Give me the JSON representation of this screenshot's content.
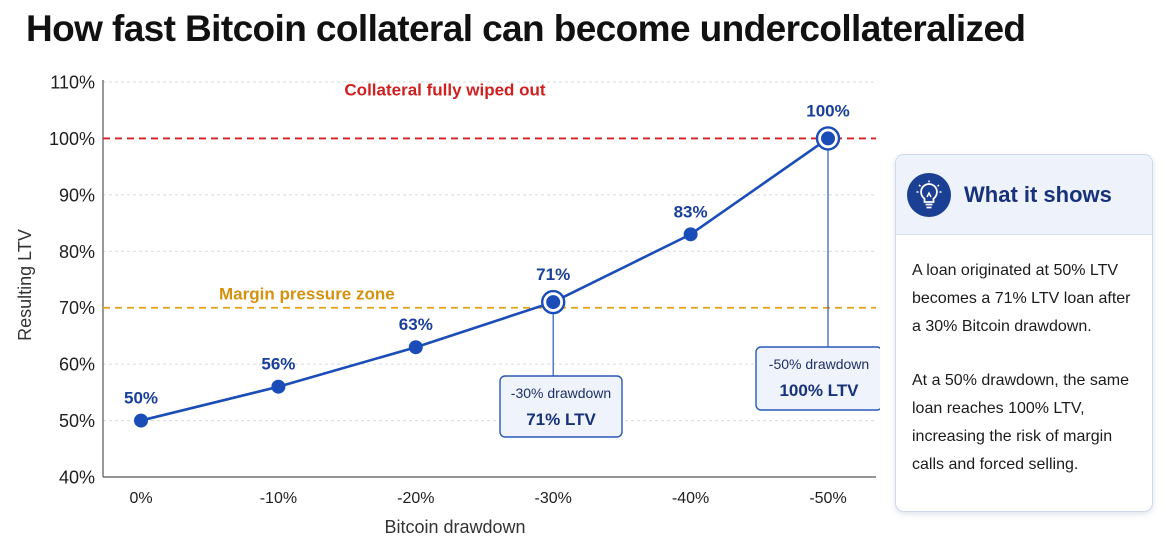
{
  "chart_data": {
    "type": "line",
    "title": "How fast Bitcoin collateral can become undercollateralized",
    "xlabel": "Bitcoin drawdown",
    "ylabel": "Resulting LTV",
    "categories": [
      "0%",
      "-10%",
      "-20%",
      "-30%",
      "-40%",
      "-50%"
    ],
    "y_ticks": [
      "40%",
      "50%",
      "60%",
      "70%",
      "80%",
      "90%",
      "100%",
      "110%"
    ],
    "ylim": [
      40,
      110
    ],
    "grid": true,
    "series": [
      {
        "values": [
          50,
          56,
          63,
          71,
          83,
          100
        ],
        "labels": [
          "50%",
          "56%",
          "63%",
          "71%",
          "83%",
          "100%"
        ],
        "color": "#1a4db8"
      }
    ],
    "reference_lines": [
      {
        "y": 100,
        "label": "Collateral fully wiped out",
        "color": "#d62222"
      },
      {
        "y": 70,
        "label": "Margin pressure zone",
        "color": "#e3a11a"
      }
    ],
    "callouts": [
      {
        "index": 3,
        "line1": "-30% drawdown",
        "line2": "71% LTV"
      },
      {
        "index": 5,
        "line1": "-50% drawdown",
        "line2": "100% LTV"
      }
    ]
  },
  "panel": {
    "icon": "lightbulb-icon",
    "title": "What it shows",
    "paragraph1": "A loan originated at 50% LTV becomes a 71% LTV loan after a 30% Bitcoin drawdown.",
    "paragraph2": "At a 50% drawdown, the same loan reaches 100% LTV, increasing the risk of margin calls and forced selling."
  }
}
